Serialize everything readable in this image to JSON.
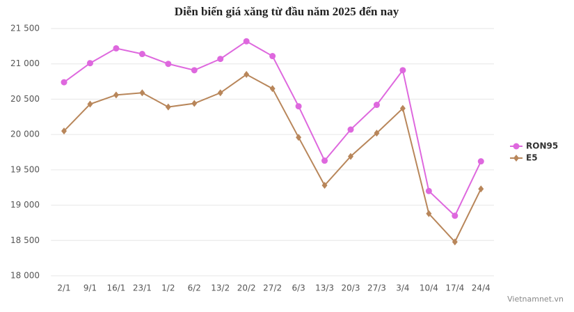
{
  "chart_data": {
    "type": "line",
    "title": "Diễn biến giá xăng từ đầu năm 2025 đến nay",
    "source": "Vietnamnet.vn",
    "categories": [
      "2/1",
      "9/1",
      "16/1",
      "23/1",
      "1/2",
      "6/2",
      "13/2",
      "20/2",
      "27/2",
      "6/3",
      "13/3",
      "20/3",
      "27/3",
      "3/4",
      "10/4",
      "17/4",
      "24/4"
    ],
    "series": [
      {
        "name": "RON95",
        "color": "#de68de",
        "marker": "circle",
        "values": [
          20740,
          21010,
          21220,
          21140,
          21000,
          20910,
          21070,
          21320,
          21110,
          20400,
          19630,
          20070,
          20420,
          20910,
          19200,
          18850,
          19620
        ]
      },
      {
        "name": "E5",
        "color": "#b8865a",
        "marker": "diamond",
        "values": [
          20050,
          20430,
          20560,
          20590,
          20390,
          20440,
          20590,
          20850,
          20650,
          19960,
          19280,
          19690,
          20020,
          20370,
          18880,
          18480,
          19230
        ]
      }
    ],
    "ylim": [
      18000,
      21500
    ],
    "yticks": [
      {
        "value": 18000,
        "label": "18 000"
      },
      {
        "value": 18500,
        "label": "18 500"
      },
      {
        "value": 19000,
        "label": "19 000"
      },
      {
        "value": 19500,
        "label": "19 500"
      },
      {
        "value": 20000,
        "label": "20 000"
      },
      {
        "value": 20500,
        "label": "20 500"
      },
      {
        "value": 21000,
        "label": "21 000"
      },
      {
        "value": 21500,
        "label": "21 500"
      }
    ],
    "grid": true,
    "legend": "right"
  }
}
